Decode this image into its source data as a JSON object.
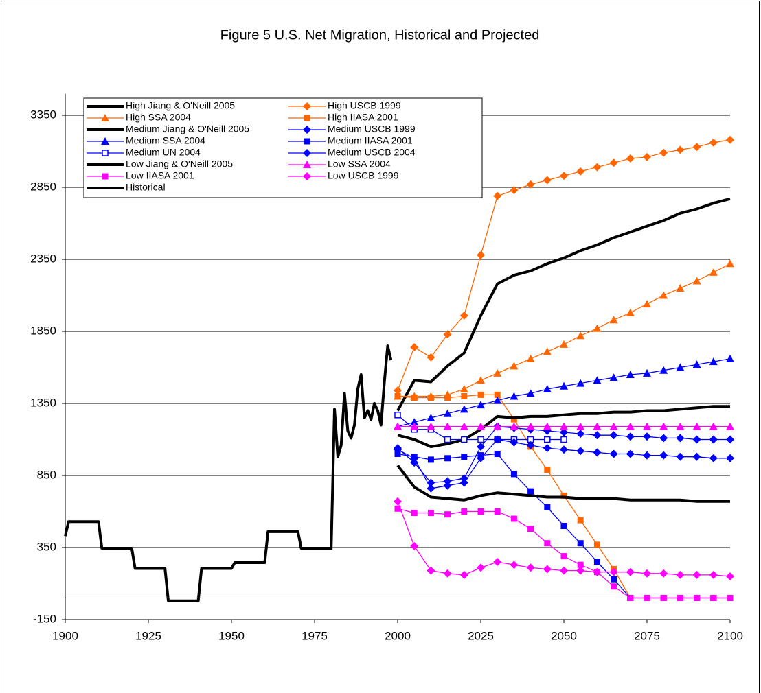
{
  "chart_data": {
    "type": "line",
    "title": "Figure 5 U.S. Net Migration, Historical and Projected",
    "xlim": [
      1900,
      2100
    ],
    "xticks": [
      1900,
      1925,
      1950,
      1975,
      2000,
      2025,
      2050,
      2075,
      2100
    ],
    "ylim": [
      -150,
      3500
    ],
    "yticks": [
      -150,
      350,
      850,
      1350,
      1850,
      2350,
      2850,
      3350
    ],
    "grid": true,
    "legend": "upper left",
    "x": [
      2000,
      2005,
      2010,
      2015,
      2020,
      2025,
      2030,
      2035,
      2040,
      2045,
      2050,
      2055,
      2060,
      2065,
      2070,
      2075,
      2080,
      2085,
      2090,
      2095,
      2100
    ],
    "series": [
      {
        "name": "High Jiang & O'Neill 2005",
        "color": "#000000",
        "marker": "none",
        "values": [
          1300,
          1510,
          1500,
          1610,
          1700,
          1960,
          2180,
          2240,
          2270,
          2320,
          2360,
          2410,
          2450,
          2500,
          2540,
          2580,
          2620,
          2670,
          2700,
          2740,
          2770
        ]
      },
      {
        "name": "High USCB 1999",
        "color": "#FF6600",
        "marker": "diamond",
        "values": [
          1440,
          1740,
          1670,
          1830,
          1960,
          2380,
          2790,
          2830,
          2870,
          2900,
          2930,
          2960,
          2990,
          3020,
          3050,
          3060,
          3090,
          3110,
          3130,
          3160,
          3180
        ]
      },
      {
        "name": "High SSA 2004",
        "color": "#FF6600",
        "marker": "triangle",
        "values": [
          1400,
          1400,
          1400,
          1410,
          1450,
          1510,
          1560,
          1610,
          1660,
          1710,
          1760,
          1820,
          1870,
          1930,
          1980,
          2040,
          2100,
          2150,
          2200,
          2260,
          2320
        ]
      },
      {
        "name": "High IIASA 2001",
        "color": "#FF6600",
        "marker": "square",
        "values": [
          1400,
          1390,
          1390,
          1390,
          1400,
          1410,
          1410,
          1240,
          1050,
          890,
          710,
          540,
          370,
          200,
          0,
          0,
          0,
          0,
          0,
          0,
          0
        ]
      },
      {
        "name": "Medium Jiang & O'Neill 2005",
        "color": "#000000",
        "marker": "none",
        "values": [
          1130,
          1100,
          1050,
          1070,
          1100,
          1170,
          1260,
          1250,
          1260,
          1260,
          1270,
          1280,
          1280,
          1290,
          1290,
          1300,
          1300,
          1310,
          1320,
          1330,
          1330
        ]
      },
      {
        "name": "Medium USCB 1999",
        "color": "#0000FF",
        "marker": "diamond",
        "values": [
          1040,
          940,
          800,
          810,
          830,
          1050,
          1190,
          1180,
          1170,
          1160,
          1150,
          1140,
          1130,
          1130,
          1120,
          1120,
          1110,
          1110,
          1100,
          1100,
          1100
        ]
      },
      {
        "name": "Medium SSA 2004",
        "color": "#0000FF",
        "marker": "triangle",
        "values": [
          1190,
          1220,
          1250,
          1280,
          1310,
          1340,
          1370,
          1400,
          1420,
          1450,
          1470,
          1490,
          1510,
          1530,
          1550,
          1560,
          1580,
          1600,
          1620,
          1640,
          1660
        ]
      },
      {
        "name": "Medium IIASA 2001",
        "color": "#0000FF",
        "marker": "square",
        "values": [
          1000,
          980,
          960,
          970,
          980,
          990,
          1000,
          860,
          740,
          630,
          500,
          380,
          250,
          130,
          0,
          0,
          0,
          0,
          0,
          0,
          0
        ]
      },
      {
        "name": "Medium UN 2004",
        "color": "#0000FF",
        "marker": "square-open",
        "values": [
          1270,
          1170,
          1170,
          1100,
          1100,
          1100,
          1100,
          1100,
          1100,
          1100,
          1100,
          null,
          null,
          null,
          null,
          null,
          null,
          null,
          null,
          null,
          null
        ]
      },
      {
        "name": "Medium USCB 2004",
        "color": "#0000FF",
        "marker": "diamond",
        "values": [
          1030,
          970,
          760,
          780,
          800,
          970,
          1100,
          1080,
          1060,
          1040,
          1030,
          1020,
          1010,
          1000,
          1000,
          990,
          990,
          980,
          980,
          970,
          970
        ]
      },
      {
        "name": "Low Jiang & O'Neill 2005",
        "color": "#000000",
        "marker": "none",
        "values": [
          920,
          770,
          700,
          690,
          680,
          710,
          730,
          720,
          710,
          700,
          700,
          690,
          690,
          690,
          680,
          680,
          680,
          680,
          670,
          670,
          670
        ]
      },
      {
        "name": "Low SSA 2004",
        "color": "#FF00FF",
        "marker": "triangle",
        "values": [
          1190,
          1190,
          1190,
          1190,
          1190,
          1190,
          1190,
          1190,
          1190,
          1190,
          1190,
          1190,
          1190,
          1190,
          1190,
          1190,
          1190,
          1190,
          1190,
          1190,
          1190
        ]
      },
      {
        "name": "Low IIASA 2001",
        "color": "#FF00FF",
        "marker": "square",
        "values": [
          620,
          590,
          590,
          580,
          600,
          600,
          600,
          550,
          480,
          380,
          290,
          230,
          180,
          80,
          0,
          0,
          0,
          0,
          0,
          0,
          0
        ]
      },
      {
        "name": "Low USCB 1999",
        "color": "#FF00FF",
        "marker": "diamond",
        "values": [
          670,
          360,
          190,
          170,
          160,
          210,
          250,
          230,
          210,
          200,
          190,
          190,
          180,
          180,
          180,
          170,
          170,
          160,
          160,
          160,
          150
        ]
      },
      {
        "name": "Historical",
        "color": "#000000",
        "marker": "none",
        "x": [
          1900,
          1901,
          1910,
          1911,
          1920,
          1921,
          1930,
          1931,
          1940,
          1941,
          1950,
          1951,
          1960,
          1961,
          1970,
          1971,
          1980,
          1981,
          1982,
          1983,
          1984,
          1985,
          1986,
          1987,
          1988,
          1989,
          1990,
          1991,
          1992,
          1993,
          1994,
          1995,
          1996,
          1997,
          1998
        ],
        "values": [
          430,
          530,
          530,
          345,
          345,
          205,
          205,
          -20,
          -20,
          205,
          205,
          245,
          245,
          460,
          460,
          345,
          345,
          1310,
          980,
          1060,
          1420,
          1160,
          1110,
          1200,
          1450,
          1550,
          1250,
          1300,
          1240,
          1350,
          1300,
          1200,
          1500,
          1750,
          1650
        ]
      }
    ]
  }
}
